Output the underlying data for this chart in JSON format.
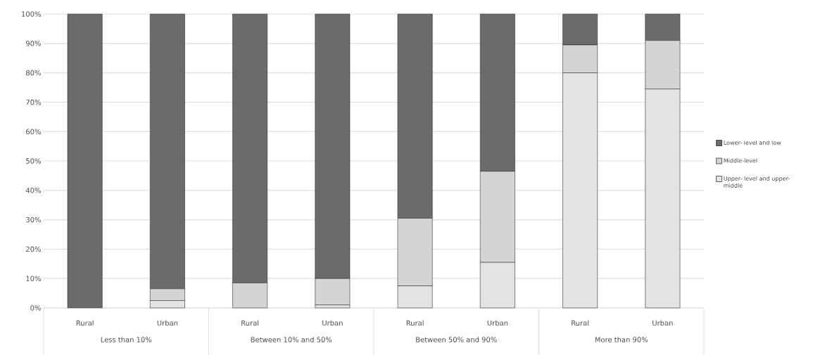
{
  "chart_data": {
    "type": "bar",
    "stacked": true,
    "categories": [
      "Rural",
      "Urban",
      "Rural",
      "Urban",
      "Rural",
      "Urban",
      "Rural",
      "Urban"
    ],
    "annotations": [
      "Less than 10%",
      "Between  10% and 50%",
      "Between  50% and 90%",
      "More than 90%"
    ],
    "series": [
      {
        "name": "Upper- level and upper-middle",
        "color": "#e3e3e3",
        "values": [
          0,
          2.5,
          0,
          1,
          7.5,
          15.5,
          80,
          74.5
        ]
      },
      {
        "name": "Middle-level",
        "color": "#d4d4d4",
        "values": [
          0,
          4,
          8.5,
          9,
          23,
          31,
          9.5,
          16.5
        ]
      },
      {
        "name": "Lower- level and low",
        "color": "#6b6b6b",
        "values": [
          100,
          93.5,
          91.5,
          90,
          69.5,
          53.5,
          10.5,
          9
        ]
      }
    ],
    "ylim": [
      0,
      100
    ],
    "yticks": [
      {
        "value": 0,
        "label": "0%"
      },
      {
        "value": 10,
        "label": "10%"
      },
      {
        "value": 20,
        "label": "20%"
      },
      {
        "value": 30,
        "label": "30%"
      },
      {
        "value": 40,
        "label": "40%"
      },
      {
        "value": 50,
        "label": "50%"
      },
      {
        "value": 60,
        "label": "60%"
      },
      {
        "value": 70,
        "label": "70%"
      },
      {
        "value": 80,
        "label": "80%"
      },
      {
        "value": 90,
        "label": "90%"
      },
      {
        "value": 100,
        "label": "100%"
      }
    ],
    "grid": "y",
    "legend": "right"
  }
}
